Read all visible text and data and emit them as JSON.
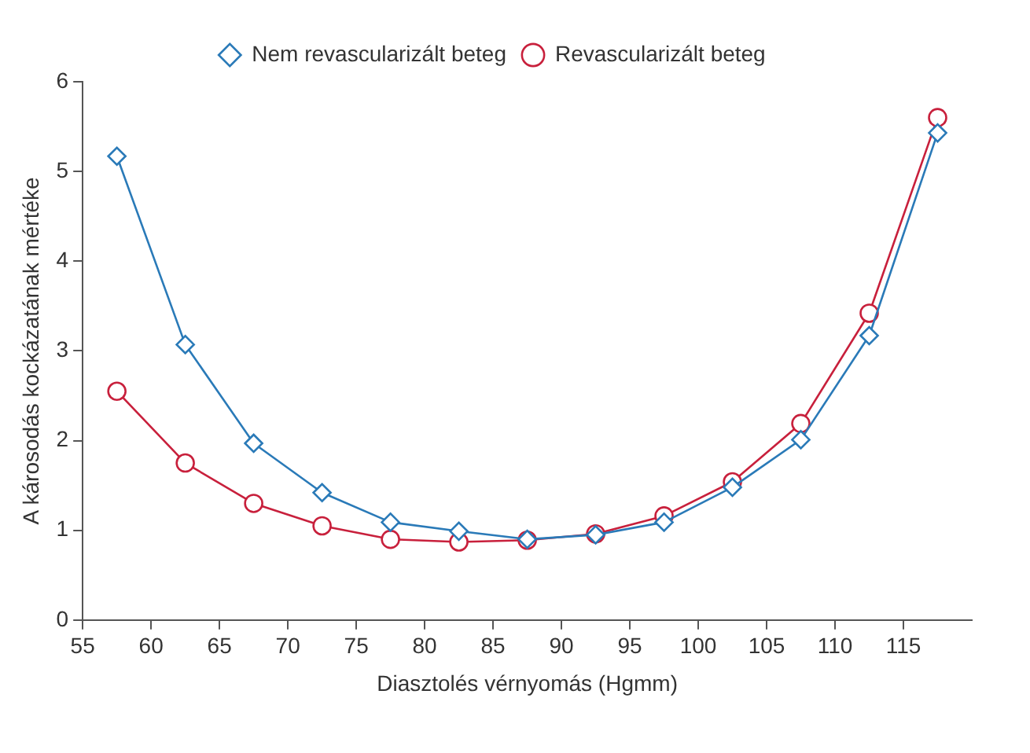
{
  "chart_data": {
    "type": "line",
    "xlabel": "Diasztolés vérnyomás (Hgmm)",
    "ylabel": "A károsodás kockázatának mértéke",
    "xlim": [
      55,
      120
    ],
    "xticks": [
      55,
      60,
      65,
      70,
      75,
      80,
      85,
      90,
      95,
      100,
      105,
      110,
      115
    ],
    "ylim": [
      0,
      6
    ],
    "yticks": [
      0,
      1,
      2,
      3,
      4,
      5,
      6
    ],
    "x": [
      57.5,
      62.5,
      67.5,
      72.5,
      77.5,
      82.5,
      87.5,
      92.5,
      97.5,
      102.5,
      107.5,
      112.5,
      117.5
    ],
    "grid": false,
    "legend": "top",
    "line_style": "solid",
    "series": [
      {
        "name": "Revascularizált beteg",
        "color": "#c8203c",
        "marker": "circle",
        "values": [
          2.55,
          1.75,
          1.3,
          1.05,
          0.9,
          0.87,
          0.89,
          0.96,
          1.16,
          1.54,
          2.19,
          3.42,
          5.6
        ]
      },
      {
        "name": "Nem revascularizált beteg",
        "color": "#2a7ab8",
        "marker": "diamond",
        "values": [
          5.17,
          3.07,
          1.97,
          1.42,
          1.09,
          0.99,
          0.9,
          0.95,
          1.09,
          1.48,
          2.01,
          3.17,
          5.43
        ]
      }
    ]
  }
}
